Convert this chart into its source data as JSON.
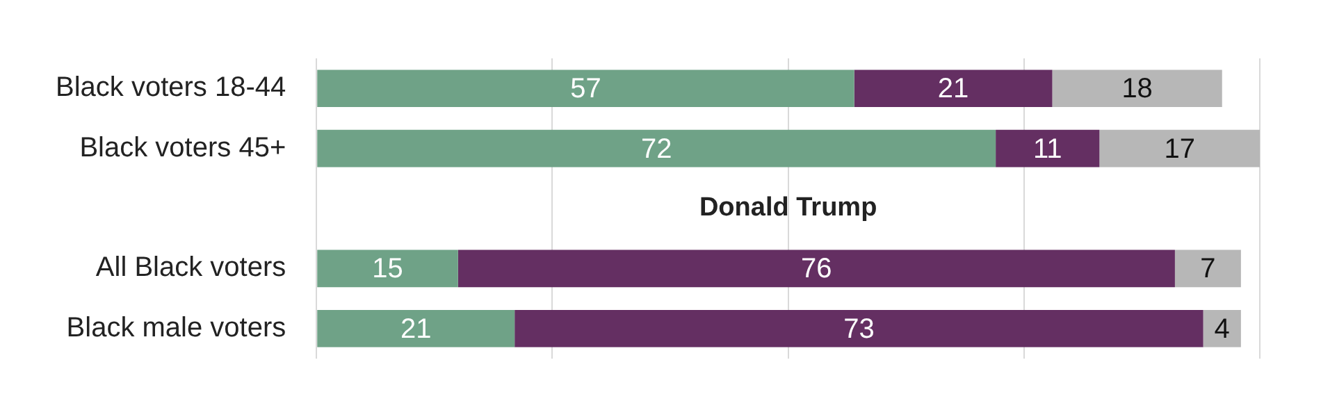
{
  "chart_data": {
    "type": "bar",
    "orientation": "horizontal",
    "stacked": true,
    "data_labels": true,
    "grid": "x",
    "tick_labels": "y",
    "categories": [
      "Black voters 18-44",
      "Black voters 45+",
      null,
      "All Black voters",
      "Black male voters"
    ],
    "series": [
      {
        "color": "#6fa287",
        "values": [
          57,
          72,
          null,
          15,
          21
        ]
      },
      {
        "color": "#642f62",
        "values": [
          21,
          11,
          null,
          76,
          73
        ]
      },
      {
        "color": "#b7b7b7",
        "values": [
          18,
          17,
          null,
          7,
          4
        ]
      }
    ],
    "xlim": [
      0,
      100
    ],
    "xticks": [
      {
        "value": 0,
        "label": null
      },
      {
        "value": 25,
        "label": null
      },
      {
        "value": 50,
        "label": null
      },
      {
        "value": 75,
        "label": null
      },
      {
        "value": 100,
        "label": null
      }
    ],
    "annotations": [
      "Donald Trump"
    ]
  }
}
